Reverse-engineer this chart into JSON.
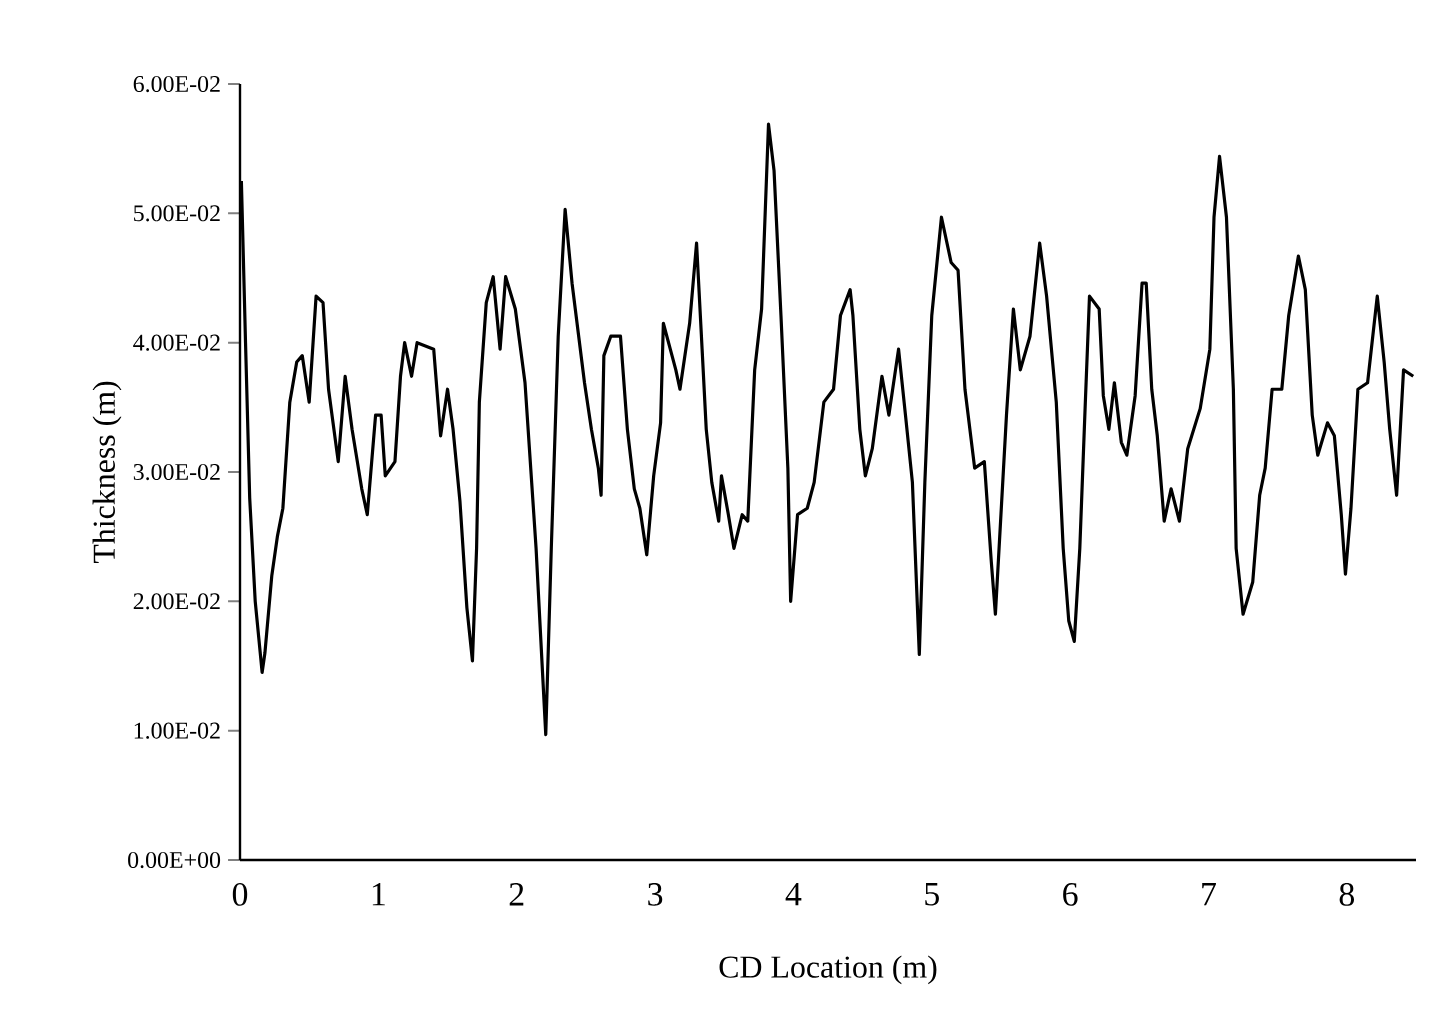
{
  "chart_data": {
    "type": "line",
    "xlabel": "CD Location (m)",
    "ylabel": "Thickness (m)",
    "xlim": [
      0,
      8.5
    ],
    "ylim": [
      0,
      0.06
    ],
    "xticks": [
      0,
      1,
      2,
      3,
      4,
      5,
      6,
      7,
      8
    ],
    "yticks": [
      {
        "value": 0,
        "label": "0.00E+00"
      },
      {
        "value": 0.01,
        "label": "1.00E-02"
      },
      {
        "value": 0.02,
        "label": "2.00E-02"
      },
      {
        "value": 0.03,
        "label": "3.00E-02"
      },
      {
        "value": 0.04,
        "label": "4.00E-02"
      },
      {
        "value": 0.05,
        "label": "5.00E-02"
      },
      {
        "value": 0.06,
        "label": "6.00E-02"
      }
    ],
    "color": "#000000",
    "x": [
      0.01,
      0.04,
      0.07,
      0.11,
      0.16,
      0.18,
      0.23,
      0.27,
      0.31,
      0.36,
      0.41,
      0.45,
      0.5,
      0.55,
      0.6,
      0.64,
      0.71,
      0.76,
      0.81,
      0.88,
      0.92,
      0.98,
      1.02,
      1.05,
      1.12,
      1.16,
      1.19,
      1.24,
      1.28,
      1.4,
      1.45,
      1.5,
      1.54,
      1.59,
      1.64,
      1.68,
      1.71,
      1.73,
      1.78,
      1.83,
      1.88,
      1.92,
      1.99,
      2.06,
      2.14,
      2.21,
      2.25,
      2.3,
      2.35,
      2.4,
      2.49,
      2.54,
      2.59,
      2.61,
      2.63,
      2.68,
      2.75,
      2.8,
      2.85,
      2.89,
      2.94,
      2.99,
      3.04,
      3.06,
      3.11,
      3.15,
      3.18,
      3.25,
      3.3,
      3.34,
      3.37,
      3.41,
      3.46,
      3.48,
      3.53,
      3.57,
      3.63,
      3.67,
      3.72,
      3.77,
      3.82,
      3.86,
      3.91,
      3.96,
      3.98,
      4.03,
      4.1,
      4.15,
      4.22,
      4.29,
      4.34,
      4.41,
      4.43,
      4.48,
      4.52,
      4.57,
      4.64,
      4.69,
      4.76,
      4.81,
      4.86,
      4.91,
      4.95,
      5.0,
      5.07,
      5.14,
      5.19,
      5.24,
      5.31,
      5.38,
      5.43,
      5.46,
      5.5,
      5.54,
      5.59,
      5.64,
      5.71,
      5.78,
      5.83,
      5.9,
      5.95,
      5.99,
      6.03,
      6.07,
      6.11,
      6.14,
      6.21,
      6.24,
      6.28,
      6.32,
      6.37,
      6.41,
      6.47,
      6.52,
      6.55,
      6.59,
      6.63,
      6.68,
      6.73,
      6.79,
      6.85,
      6.94,
      7.01,
      7.04,
      7.08,
      7.13,
      7.18,
      7.2,
      7.25,
      7.32,
      7.37,
      7.41,
      7.46,
      7.53,
      7.58,
      7.65,
      7.7,
      7.75,
      7.79,
      7.86,
      7.91,
      7.96,
      7.99,
      8.03,
      8.08,
      8.15,
      8.22,
      8.27,
      8.31,
      8.36,
      8.41,
      8.48
    ],
    "values": [
      0.0525,
      0.04,
      0.028,
      0.02,
      0.0145,
      0.016,
      0.022,
      0.025,
      0.0272,
      0.0354,
      0.0385,
      0.039,
      0.0354,
      0.0436,
      0.0431,
      0.0364,
      0.0308,
      0.0374,
      0.0333,
      0.0287,
      0.0267,
      0.0344,
      0.0344,
      0.0297,
      0.0308,
      0.0374,
      0.04,
      0.0374,
      0.04,
      0.0395,
      0.0328,
      0.0364,
      0.0333,
      0.0277,
      0.0195,
      0.0154,
      0.0241,
      0.0354,
      0.0431,
      0.0451,
      0.0395,
      0.0451,
      0.0426,
      0.0369,
      0.0241,
      0.0097,
      0.0241,
      0.0405,
      0.0503,
      0.0446,
      0.0369,
      0.0333,
      0.0303,
      0.0282,
      0.039,
      0.0405,
      0.0405,
      0.0333,
      0.0287,
      0.0272,
      0.0236,
      0.0297,
      0.0338,
      0.0415,
      0.0395,
      0.0379,
      0.0364,
      0.0415,
      0.0477,
      0.0395,
      0.0333,
      0.0292,
      0.0262,
      0.0297,
      0.0267,
      0.0241,
      0.0267,
      0.0262,
      0.0379,
      0.0426,
      0.0569,
      0.0533,
      0.0421,
      0.0303,
      0.02,
      0.0267,
      0.0272,
      0.0292,
      0.0354,
      0.0364,
      0.0421,
      0.0441,
      0.0421,
      0.0333,
      0.0297,
      0.0318,
      0.0374,
      0.0344,
      0.0395,
      0.0344,
      0.0292,
      0.0159,
      0.0292,
      0.0421,
      0.0497,
      0.0462,
      0.0456,
      0.0364,
      0.0303,
      0.0308,
      0.0231,
      0.019,
      0.0267,
      0.0344,
      0.0426,
      0.0379,
      0.0405,
      0.0477,
      0.0436,
      0.0354,
      0.0241,
      0.0185,
      0.0169,
      0.0241,
      0.0354,
      0.0436,
      0.0426,
      0.0359,
      0.0333,
      0.0369,
      0.0323,
      0.0313,
      0.0359,
      0.0446,
      0.0446,
      0.0364,
      0.0328,
      0.0262,
      0.0287,
      0.0262,
      0.0318,
      0.0349,
      0.0395,
      0.0497,
      0.0544,
      0.0497,
      0.0364,
      0.0241,
      0.019,
      0.0215,
      0.0282,
      0.0303,
      0.0364,
      0.0364,
      0.0421,
      0.0467,
      0.0441,
      0.0344,
      0.0313,
      0.0338,
      0.0328,
      0.0267,
      0.0221,
      0.0272,
      0.0364,
      0.0369,
      0.0436,
      0.0385,
      0.0333,
      0.0282,
      0.0379,
      0.0374
    ]
  }
}
